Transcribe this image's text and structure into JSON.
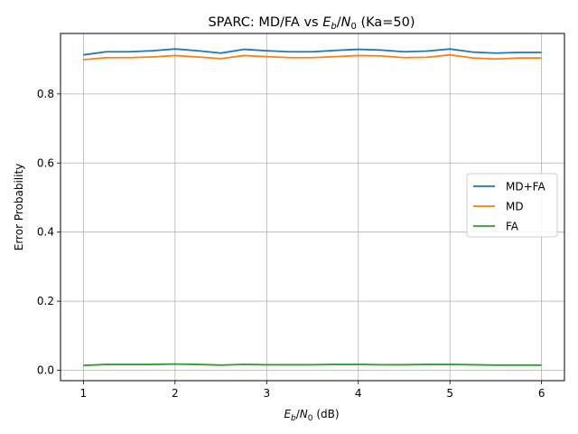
{
  "chart_data": {
    "type": "line",
    "title": {
      "prefix": "SPARC: MD/FA vs ",
      "math_main": "E",
      "math_sub": "b",
      "math_slash": "/",
      "math_main2": "N",
      "math_sub2": "0",
      "suffix": " (Ka=50)"
    },
    "xlabel": {
      "math_main": "E",
      "math_sub": "b",
      "math_slash": "/",
      "math_main2": "N",
      "math_sub2": "0",
      "suffix": " (dB)"
    },
    "ylabel": "Error Probability",
    "xlim": [
      0.75,
      6.25
    ],
    "ylim": [
      -0.03,
      0.975
    ],
    "x_ticks": [
      1,
      2,
      3,
      4,
      5,
      6
    ],
    "x_tick_labels": [
      "1",
      "2",
      "3",
      "4",
      "5",
      "6"
    ],
    "y_ticks": [
      0.0,
      0.2,
      0.4,
      0.6,
      0.8
    ],
    "y_tick_labels": [
      "0.0",
      "0.2",
      "0.4",
      "0.6",
      "0.8"
    ],
    "grid": true,
    "legend_position": "center-right",
    "x": [
      1.0,
      1.25,
      1.5,
      1.75,
      2.0,
      2.25,
      2.5,
      2.75,
      3.0,
      3.25,
      3.5,
      3.75,
      4.0,
      4.25,
      4.5,
      4.75,
      5.0,
      5.25,
      5.5,
      5.75,
      6.0
    ],
    "series": [
      {
        "name": "MD+FA",
        "color": "#1f77b4",
        "values": [
          0.913,
          0.922,
          0.922,
          0.925,
          0.93,
          0.925,
          0.918,
          0.929,
          0.925,
          0.922,
          0.922,
          0.926,
          0.929,
          0.927,
          0.922,
          0.924,
          0.93,
          0.921,
          0.918,
          0.92,
          0.92
        ]
      },
      {
        "name": "MD",
        "color": "#ff7f0e",
        "values": [
          0.899,
          0.905,
          0.905,
          0.907,
          0.911,
          0.907,
          0.902,
          0.911,
          0.908,
          0.905,
          0.905,
          0.908,
          0.911,
          0.91,
          0.905,
          0.906,
          0.913,
          0.904,
          0.901,
          0.904,
          0.904
        ]
      },
      {
        "name": "FA",
        "color": "#2ca02c",
        "values": [
          0.014,
          0.017,
          0.017,
          0.017,
          0.018,
          0.017,
          0.015,
          0.017,
          0.016,
          0.016,
          0.016,
          0.017,
          0.017,
          0.016,
          0.016,
          0.017,
          0.017,
          0.016,
          0.015,
          0.015,
          0.015
        ]
      }
    ]
  }
}
